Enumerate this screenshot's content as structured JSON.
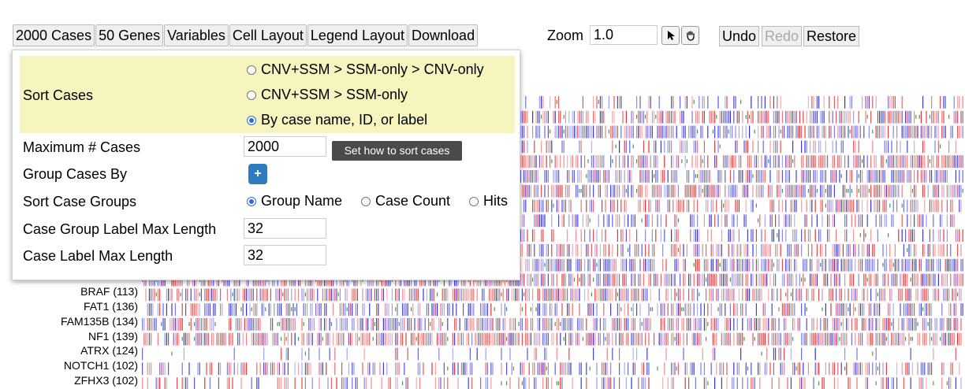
{
  "toolbar": {
    "cases_label": "2000 Cases",
    "genes_label": "50 Genes",
    "variables_label": "Variables",
    "cell_layout_label": "Cell Layout",
    "legend_layout_label": "Legend Layout",
    "download_label": "Download"
  },
  "zoom": {
    "label": "Zoom",
    "value": "1.0",
    "select_icon": "cursor-arrow-icon",
    "pan_icon": "hand-grab-icon"
  },
  "history": {
    "undo": "Undo",
    "redo": "Redo",
    "restore": "Restore"
  },
  "menu": {
    "sort_cases_label": "Sort Cases",
    "sort_options": [
      {
        "label": "CNV+SSM > SSM-only > CNV-only",
        "selected": false
      },
      {
        "label": "CNV+SSM > SSM-only",
        "selected": false
      },
      {
        "label": "By case name, ID, or label",
        "selected": true
      }
    ],
    "max_cases_label": "Maximum # Cases",
    "max_cases_value": "2000",
    "group_by_label": "Group Cases By",
    "group_add": "+",
    "sort_groups_label": "Sort Case Groups",
    "sort_group_options": [
      {
        "label": "Group Name",
        "selected": true
      },
      {
        "label": "Case Count",
        "selected": false
      },
      {
        "label": "Hits",
        "selected": false
      }
    ],
    "group_label_max_label": "Case Group Label Max Length",
    "group_label_max_value": "32",
    "case_label_max_label": "Case Label Max Length",
    "case_label_max_value": "32"
  },
  "tooltip": "Set how to sort cases",
  "genes": [
    {
      "label": "BRAF (113)"
    },
    {
      "label": "FAT1 (136)"
    },
    {
      "label": "FAM135B (134)"
    },
    {
      "label": "NF1 (139)"
    },
    {
      "label": "ATRX (124)"
    },
    {
      "label": "NOTCH1 (102)"
    },
    {
      "label": "ZFHX3 (102)"
    }
  ],
  "colors": {
    "gain": "#e03030",
    "loss": "#3030d8",
    "ssm": "#3a8a3a",
    "sort_highlight": "#f6f4bf",
    "add_button": "#2e7bc0"
  }
}
